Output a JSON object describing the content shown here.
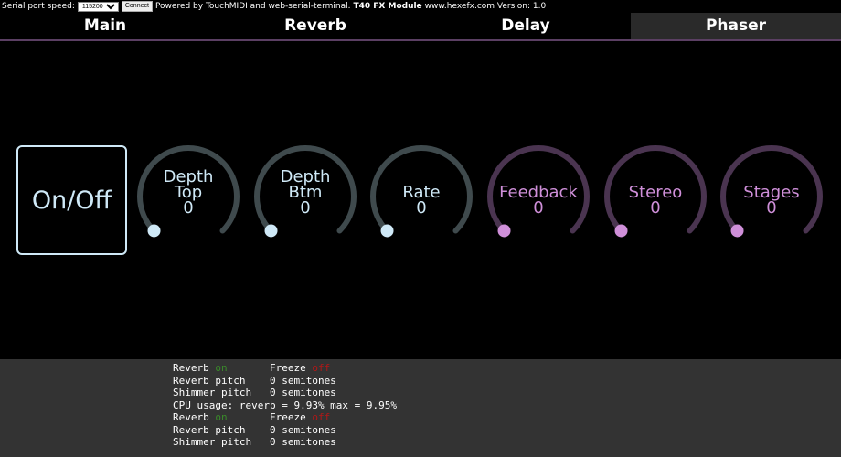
{
  "topbar": {
    "speed_label": "Serial port speed:",
    "speed_value": "115200",
    "connect_label": "Connect",
    "powered_text": "Powered by  TouchMIDI  and  web-serial-terminal.",
    "module_name": "T40 FX Module",
    "site_version": "www.hexefx.com Version: 1.0"
  },
  "tabs": [
    {
      "label": "Main",
      "active": false
    },
    {
      "label": "Reverb",
      "active": false
    },
    {
      "label": "Delay",
      "active": false
    },
    {
      "label": "Phaser",
      "active": true
    }
  ],
  "onoff_label": "On/Off",
  "colors": {
    "blue": "#cfe9f7",
    "purple": "#cf8fd9",
    "arc_blue": "#3f4a4d",
    "arc_purple": "#4a3450",
    "on": "#3a8a2a",
    "off": "#b01818"
  },
  "knobs": [
    {
      "lines": [
        "Depth",
        "Top"
      ],
      "value": "0",
      "level": 0,
      "theme": "blue"
    },
    {
      "lines": [
        "Depth",
        "Btm"
      ],
      "value": "0",
      "level": 0,
      "theme": "blue"
    },
    {
      "lines": [
        "Rate"
      ],
      "value": "0",
      "level": 0,
      "theme": "blue"
    },
    {
      "lines": [
        "Feedback"
      ],
      "value": "0",
      "level": 0,
      "theme": "purple"
    },
    {
      "lines": [
        "Stereo"
      ],
      "value": "0",
      "level": 0,
      "theme": "purple"
    },
    {
      "lines": [
        "Stages"
      ],
      "value": "0",
      "level": 0,
      "theme": "purple"
    }
  ],
  "terminal": [
    [
      {
        "t": "Reverb "
      },
      {
        "t": "on",
        "c": "on"
      },
      {
        "t": "       Freeze "
      },
      {
        "t": "off",
        "c": "off"
      }
    ],
    [
      {
        "t": "Reverb pitch    0 semitones"
      }
    ],
    [
      {
        "t": "Shimmer pitch   0 semitones"
      }
    ],
    [
      {
        "t": "CPU usage: reverb = 9.93% max = 9.95%"
      }
    ],
    [
      {
        "t": "Reverb "
      },
      {
        "t": "on",
        "c": "on"
      },
      {
        "t": "       Freeze "
      },
      {
        "t": "off",
        "c": "off"
      }
    ],
    [
      {
        "t": "Reverb pitch    0 semitones"
      }
    ],
    [
      {
        "t": "Shimmer pitch   0 semitones"
      }
    ]
  ]
}
